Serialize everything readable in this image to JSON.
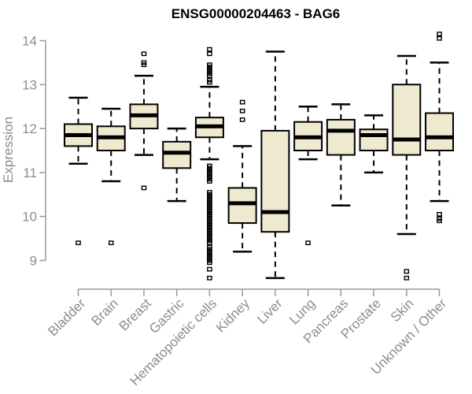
{
  "chart_data": {
    "type": "boxplot",
    "title": "ENSG00000204463 - BAG6",
    "ylabel": "Expression",
    "xlabel": "",
    "ylim": [
      8.4,
      14.2
    ],
    "yticks": [
      9,
      10,
      11,
      12,
      13,
      14
    ],
    "grid": false,
    "legend": "none",
    "colors": {
      "box_fill": "#efe9d0",
      "box_stroke": "#000000",
      "median": "#000000",
      "axis_line": "#999999",
      "axis_text": "#8c8c8c",
      "title_text": "#000000",
      "background": "#ffffff"
    },
    "categories": [
      "Bladder",
      "Brain",
      "Breast",
      "Gastric",
      "Hematopoietic cells",
      "Kidney",
      "Liver",
      "Lung",
      "Pancreas",
      "Prostate",
      "Skin",
      "Unknown / Other"
    ],
    "series": [
      {
        "label": "Bladder",
        "whisker_low": 11.2,
        "q1": 11.6,
        "median": 11.85,
        "q3": 12.1,
        "whisker_high": 12.7,
        "outliers": [
          9.4
        ]
      },
      {
        "label": "Brain",
        "whisker_low": 10.8,
        "q1": 11.5,
        "median": 11.8,
        "q3": 12.05,
        "whisker_high": 12.45,
        "outliers": [
          9.4
        ]
      },
      {
        "label": "Breast",
        "whisker_low": 11.4,
        "q1": 12.0,
        "median": 12.3,
        "q3": 12.55,
        "whisker_high": 13.2,
        "outliers": [
          10.65,
          13.45,
          13.5,
          13.7
        ]
      },
      {
        "label": "Gastric",
        "whisker_low": 10.35,
        "q1": 11.1,
        "median": 11.45,
        "q3": 11.7,
        "whisker_high": 12.0,
        "outliers": []
      },
      {
        "label": "Hematopoietic cells",
        "whisker_low": 11.3,
        "q1": 11.8,
        "median": 12.05,
        "q3": 12.25,
        "whisker_high": 12.95,
        "outliers": [
          13.8,
          13.7,
          13.45,
          13.4,
          13.35,
          13.3,
          13.25,
          13.2,
          13.1,
          13.05,
          11.15,
          11.1,
          11.05,
          11.0,
          10.95,
          10.9,
          10.85,
          10.8,
          10.55,
          10.5,
          10.45,
          10.4,
          10.35,
          10.3,
          10.25,
          10.2,
          10.15,
          10.1,
          10.05,
          10.0,
          9.95,
          9.9,
          9.85,
          9.8,
          9.75,
          9.7,
          9.65,
          9.6,
          9.55,
          9.5,
          9.45,
          9.4,
          9.3,
          9.25,
          9.2,
          9.15,
          9.1,
          9.05,
          9.0,
          8.95,
          8.8,
          8.6
        ]
      },
      {
        "label": "Kidney",
        "whisker_low": 9.2,
        "q1": 9.85,
        "median": 10.3,
        "q3": 10.65,
        "whisker_high": 11.6,
        "outliers": [
          12.2,
          12.4,
          12.6
        ]
      },
      {
        "label": "Liver",
        "whisker_low": 8.6,
        "q1": 9.65,
        "median": 10.1,
        "q3": 11.95,
        "whisker_high": 13.75,
        "outliers": []
      },
      {
        "label": "Lung",
        "whisker_low": 11.3,
        "q1": 11.5,
        "median": 11.8,
        "q3": 12.15,
        "whisker_high": 12.5,
        "outliers": [
          9.4
        ]
      },
      {
        "label": "Pancreas",
        "whisker_low": 10.25,
        "q1": 11.4,
        "median": 11.95,
        "q3": 12.2,
        "whisker_high": 12.55,
        "outliers": []
      },
      {
        "label": "Prostate",
        "whisker_low": 11.0,
        "q1": 11.5,
        "median": 11.85,
        "q3": 11.98,
        "whisker_high": 12.3,
        "outliers": []
      },
      {
        "label": "Skin",
        "whisker_low": 9.6,
        "q1": 11.4,
        "median": 11.75,
        "q3": 13.0,
        "whisker_high": 13.65,
        "outliers": [
          8.6,
          8.75
        ]
      },
      {
        "label": "Unknown / Other",
        "whisker_low": 10.35,
        "q1": 11.5,
        "median": 11.8,
        "q3": 12.35,
        "whisker_high": 13.5,
        "outliers": [
          9.9,
          9.95,
          10.05,
          14.05,
          14.15
        ]
      }
    ]
  }
}
